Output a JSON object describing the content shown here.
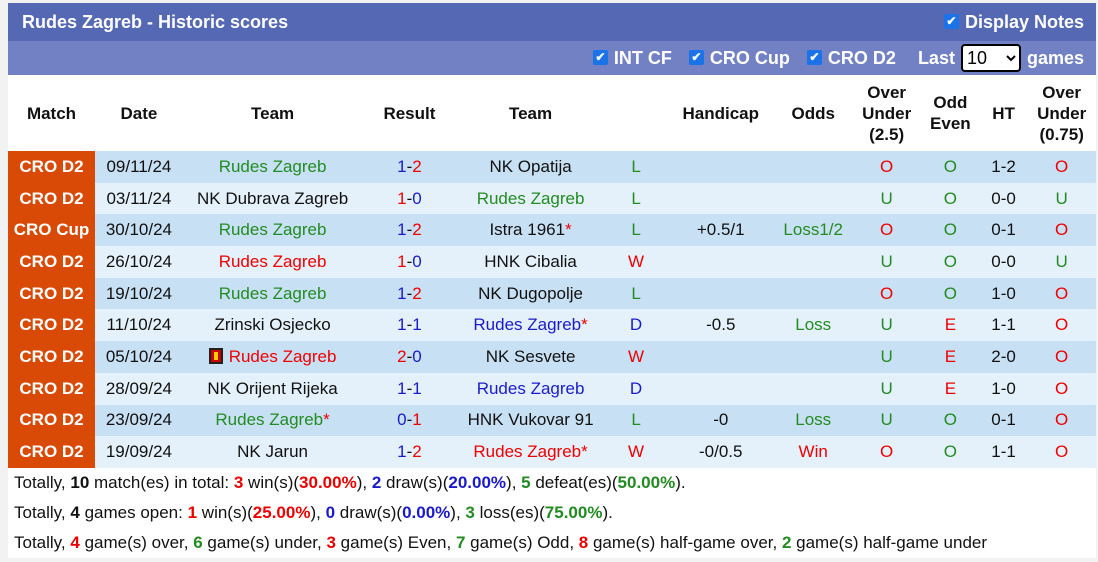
{
  "title": "Rudes Zagreb - Historic scores",
  "display_notes": "Display Notes",
  "filters": [
    "INT CF",
    "CRO Cup",
    "CRO D2"
  ],
  "last_label": "Last",
  "last_value": "10",
  "games_label": "games",
  "headers": [
    "Match",
    "Date",
    "Team",
    "Result",
    "Team",
    "",
    "Handicap",
    "Odds",
    "Over Under (2.5)",
    "Odd Even",
    "HT",
    "Over Under (0.75)"
  ],
  "rows": [
    {
      "lg": "CRO D2",
      "date": "09/11/24",
      "home": "Rudes Zagreb",
      "hc": "g",
      "hs": "1",
      "hsc": "b",
      "as": "2",
      "asc": "r",
      "away": "NK Opatija",
      "ac": "k",
      "res": "L",
      "rc": "g",
      "hcap": "",
      "odds": "",
      "oc": "g",
      "ou": "O",
      "ouc": "r",
      "oe": "O",
      "oec": "g",
      "ht": "1-2",
      "ou2": "O",
      "ou2c": "r"
    },
    {
      "lg": "CRO D2",
      "date": "03/11/24",
      "home": "NK Dubrava Zagreb",
      "hc": "k",
      "hs": "1",
      "hsc": "r",
      "as": "0",
      "asc": "b",
      "away": "Rudes Zagreb",
      "ac": "g",
      "res": "L",
      "rc": "g",
      "hcap": "",
      "odds": "",
      "oc": "g",
      "ou": "U",
      "ouc": "g",
      "oe": "O",
      "oec": "g",
      "ht": "0-0",
      "ou2": "U",
      "ou2c": "g"
    },
    {
      "lg": "CRO Cup",
      "date": "30/10/24",
      "home": "Rudes Zagreb",
      "hc": "g",
      "hs": "1",
      "hsc": "b",
      "as": "2",
      "asc": "r",
      "away": "Istra 1961",
      "ac": "k",
      "astar": "*",
      "res": "L",
      "rc": "g",
      "hcap": "+0.5/1",
      "odds": "Loss1/2",
      "oc": "g",
      "ou": "O",
      "ouc": "r",
      "oe": "O",
      "oec": "g",
      "ht": "0-1",
      "ou2": "O",
      "ou2c": "r"
    },
    {
      "lg": "CRO D2",
      "date": "26/10/24",
      "home": "Rudes Zagreb",
      "hc": "r",
      "hs": "1",
      "hsc": "r",
      "as": "0",
      "asc": "b",
      "away": "HNK Cibalia",
      "ac": "k",
      "res": "W",
      "rc": "r",
      "hcap": "",
      "odds": "",
      "oc": "g",
      "ou": "U",
      "ouc": "g",
      "oe": "O",
      "oec": "g",
      "ht": "0-0",
      "ou2": "U",
      "ou2c": "g"
    },
    {
      "lg": "CRO D2",
      "date": "19/10/24",
      "home": "Rudes Zagreb",
      "hc": "g",
      "hs": "1",
      "hsc": "b",
      "as": "2",
      "asc": "r",
      "away": "NK Dugopolje",
      "ac": "k",
      "res": "L",
      "rc": "g",
      "hcap": "",
      "odds": "",
      "oc": "g",
      "ou": "O",
      "ouc": "r",
      "oe": "O",
      "oec": "g",
      "ht": "1-0",
      "ou2": "O",
      "ou2c": "r"
    },
    {
      "lg": "CRO D2",
      "date": "11/10/24",
      "home": "Zrinski Osjecko",
      "hc": "k",
      "hs": "1",
      "hsc": "b",
      "as": "1",
      "asc": "b",
      "away": "Rudes Zagreb",
      "ac": "b",
      "astar": "*",
      "res": "D",
      "rc": "b",
      "hcap": "-0.5",
      "odds": "Loss",
      "oc": "g",
      "ou": "U",
      "ouc": "g",
      "oe": "E",
      "oec": "r",
      "ht": "1-1",
      "ou2": "O",
      "ou2c": "r"
    },
    {
      "lg": "CRO D2",
      "date": "05/10/24",
      "home": "Rudes Zagreb",
      "hc": "r",
      "hcard": true,
      "hs": "2",
      "hsc": "r",
      "as": "0",
      "asc": "b",
      "away": "NK Sesvete",
      "ac": "k",
      "res": "W",
      "rc": "r",
      "hcap": "",
      "odds": "",
      "oc": "g",
      "ou": "U",
      "ouc": "g",
      "oe": "E",
      "oec": "r",
      "ht": "2-0",
      "ou2": "O",
      "ou2c": "r"
    },
    {
      "lg": "CRO D2",
      "date": "28/09/24",
      "home": "NK Orijent Rijeka",
      "hc": "k",
      "hs": "1",
      "hsc": "b",
      "as": "1",
      "asc": "b",
      "away": "Rudes Zagreb",
      "ac": "b",
      "res": "D",
      "rc": "b",
      "hcap": "",
      "odds": "",
      "oc": "g",
      "ou": "U",
      "ouc": "g",
      "oe": "E",
      "oec": "r",
      "ht": "1-0",
      "ou2": "O",
      "ou2c": "r"
    },
    {
      "lg": "CRO D2",
      "date": "23/09/24",
      "home": "Rudes Zagreb",
      "hc": "g",
      "hstar": "*",
      "hs": "0",
      "hsc": "b",
      "as": "1",
      "asc": "r",
      "away": "HNK Vukovar 91",
      "ac": "k",
      "res": "L",
      "rc": "g",
      "hcap": "-0",
      "odds": "Loss",
      "oc": "g",
      "ou": "U",
      "ouc": "g",
      "oe": "O",
      "oec": "g",
      "ht": "0-1",
      "ou2": "O",
      "ou2c": "r"
    },
    {
      "lg": "CRO D2",
      "date": "19/09/24",
      "home": "NK Jarun",
      "hc": "k",
      "hs": "1",
      "hsc": "b",
      "as": "2",
      "asc": "r",
      "away": "Rudes Zagreb",
      "ac": "r",
      "astar": "*",
      "res": "W",
      "rc": "r",
      "hcap": "-0/0.5",
      "odds": "Win",
      "oc": "r",
      "ou": "O",
      "ouc": "r",
      "oe": "O",
      "oec": "g",
      "ht": "1-1",
      "ou2": "O",
      "ou2c": "r"
    }
  ],
  "summary": [
    [
      [
        "Totally, ",
        "k"
      ],
      [
        "10",
        "kb"
      ],
      [
        " match(es) in total: ",
        "k"
      ],
      [
        "3",
        "r"
      ],
      [
        " win(s)(",
        "k"
      ],
      [
        "30.00%",
        "r"
      ],
      [
        "), ",
        "k"
      ],
      [
        "2",
        "b"
      ],
      [
        " draw(s)(",
        "k"
      ],
      [
        "20.00%",
        "b"
      ],
      [
        "), ",
        "k"
      ],
      [
        "5",
        "g"
      ],
      [
        " defeat(es)(",
        "k"
      ],
      [
        "50.00%",
        "g"
      ],
      [
        ").",
        "k"
      ]
    ],
    [
      [
        "Totally, ",
        "k"
      ],
      [
        "4",
        "kb"
      ],
      [
        " games open: ",
        "k"
      ],
      [
        "1",
        "r"
      ],
      [
        " win(s)(",
        "k"
      ],
      [
        "25.00%",
        "r"
      ],
      [
        "), ",
        "k"
      ],
      [
        "0",
        "b"
      ],
      [
        " draw(s)(",
        "k"
      ],
      [
        "0.00%",
        "b"
      ],
      [
        "), ",
        "k"
      ],
      [
        "3",
        "g"
      ],
      [
        " loss(es)(",
        "k"
      ],
      [
        "75.00%",
        "g"
      ],
      [
        ").",
        "k"
      ]
    ],
    [
      [
        "Totally, ",
        "k"
      ],
      [
        "4",
        "r"
      ],
      [
        " game(s) over, ",
        "k"
      ],
      [
        "6",
        "g"
      ],
      [
        " game(s) under, ",
        "k"
      ],
      [
        "3",
        "r"
      ],
      [
        " game(s) Even, ",
        "k"
      ],
      [
        "7",
        "g"
      ],
      [
        " game(s) Odd, ",
        "k"
      ],
      [
        "8",
        "r"
      ],
      [
        " game(s) half-game over, ",
        "k"
      ],
      [
        "2",
        "g"
      ],
      [
        " game(s) half-game under",
        "k"
      ]
    ]
  ]
}
